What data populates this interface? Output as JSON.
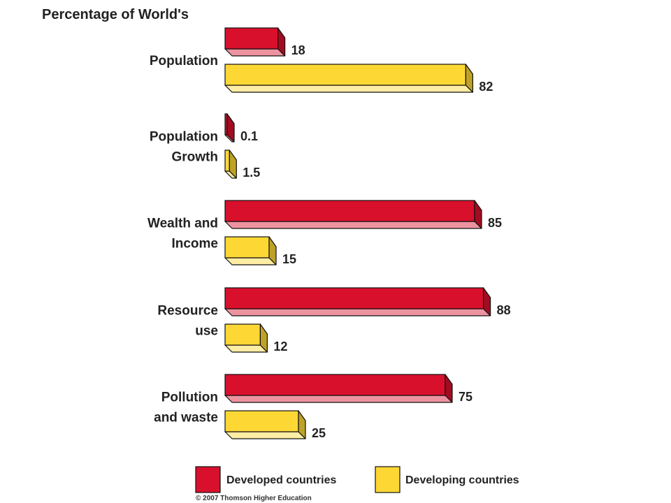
{
  "chart_data": {
    "type": "bar",
    "orientation": "horizontal",
    "title": "Percentage of World's",
    "categories": [
      "Population",
      "Population Growth",
      "Wealth and Income",
      "Resource use",
      "Pollution and waste"
    ],
    "category_lines": [
      [
        "Population"
      ],
      [
        "Population",
        "Growth"
      ],
      [
        "Wealth and",
        "Income"
      ],
      [
        "Resource",
        "use"
      ],
      [
        "Pollution",
        "and waste"
      ]
    ],
    "series": [
      {
        "name": "Developed countries",
        "color": "#d8102c",
        "values": [
          18,
          0.1,
          85,
          88,
          75
        ],
        "labels": [
          "18",
          "0.1",
          "85",
          "88",
          "75"
        ]
      },
      {
        "name": "Developing countries",
        "color": "#fdd835",
        "values": [
          82,
          1.5,
          15,
          12,
          25
        ],
        "labels": [
          "82",
          "1.5",
          "15",
          "12",
          "25"
        ]
      }
    ],
    "legend_position": "bottom",
    "grid": false
  },
  "footer": {
    "copyright": "© 2007 Thomson Higher Education"
  }
}
